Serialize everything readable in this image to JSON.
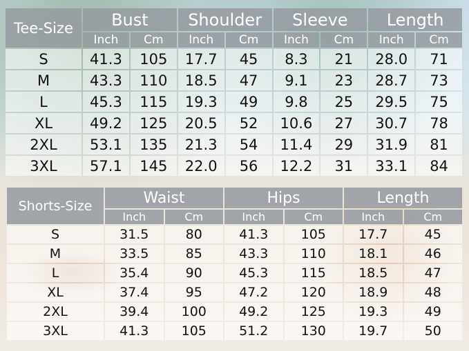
{
  "tee": {
    "corner_label": "Tee-Size",
    "groups": [
      "Bust",
      "Shoulder",
      "Sleeve",
      "Length"
    ],
    "units": [
      "Inch",
      "Cm"
    ],
    "rows": [
      {
        "size": "S",
        "values": [
          "41.3",
          "105",
          "17.7",
          "45",
          "8.3",
          "21",
          "28.0",
          "71"
        ]
      },
      {
        "size": "M",
        "values": [
          "43.3",
          "110",
          "18.5",
          "47",
          "9.1",
          "23",
          "28.7",
          "73"
        ]
      },
      {
        "size": "L",
        "values": [
          "45.3",
          "115",
          "19.3",
          "49",
          "9.8",
          "25",
          "29.5",
          "75"
        ]
      },
      {
        "size": "XL",
        "values": [
          "49.2",
          "125",
          "20.5",
          "52",
          "10.6",
          "27",
          "30.7",
          "78"
        ]
      },
      {
        "size": "2XL",
        "values": [
          "53.1",
          "135",
          "21.3",
          "54",
          "11.4",
          "29",
          "31.9",
          "81"
        ]
      },
      {
        "size": "3XL",
        "values": [
          "57.1",
          "145",
          "22.0",
          "56",
          "12.2",
          "31",
          "33.1",
          "84"
        ]
      }
    ]
  },
  "shorts": {
    "corner_label": "Shorts-Size",
    "groups": [
      "Waist",
      "Hips",
      "Length"
    ],
    "units": [
      "Inch",
      "Cm"
    ],
    "rows": [
      {
        "size": "S",
        "values": [
          "31.5",
          "80",
          "41.3",
          "105",
          "17.7",
          "45"
        ]
      },
      {
        "size": "M",
        "values": [
          "33.5",
          "85",
          "43.3",
          "110",
          "18.1",
          "46"
        ]
      },
      {
        "size": "L",
        "values": [
          "35.4",
          "90",
          "45.3",
          "115",
          "18.5",
          "47"
        ]
      },
      {
        "size": "XL",
        "values": [
          "37.4",
          "95",
          "47.2",
          "120",
          "18.9",
          "48"
        ]
      },
      {
        "size": "2XL",
        "values": [
          "39.4",
          "100",
          "49.2",
          "125",
          "19.3",
          "49"
        ]
      },
      {
        "size": "3XL",
        "values": [
          "41.3",
          "105",
          "51.2",
          "130",
          "19.7",
          "50"
        ]
      }
    ]
  },
  "colors": {
    "header_bg": "#969ca2",
    "header_text": "#ffffff",
    "cell_text": "#111111"
  }
}
